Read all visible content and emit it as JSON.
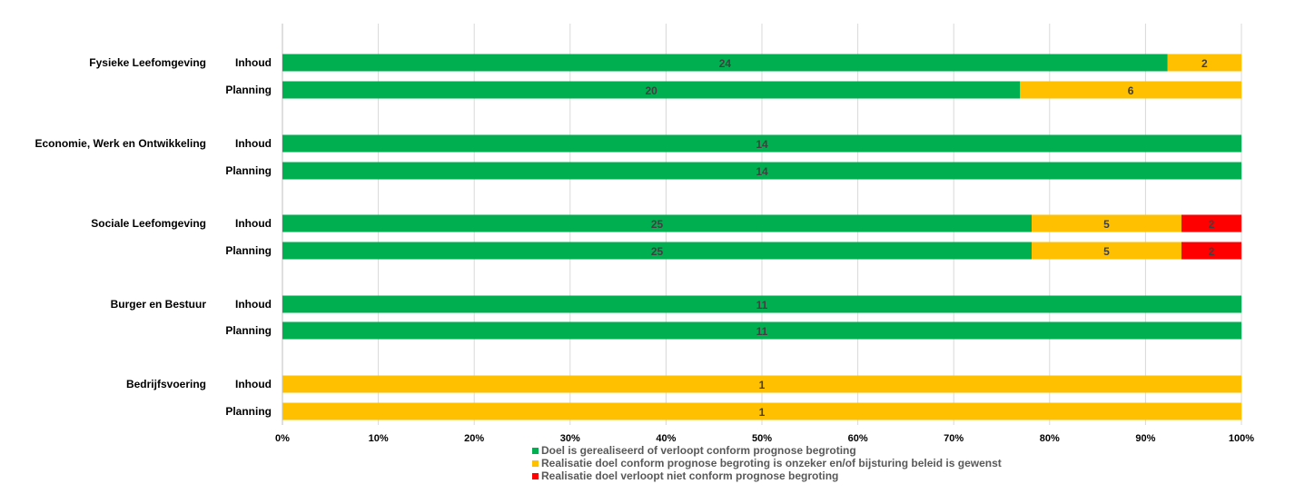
{
  "chart_data": {
    "type": "bar",
    "orientation": "horizontal",
    "stacked": "percent",
    "grid": true,
    "legend_position": "bottom",
    "xlim": [
      0,
      100
    ],
    "x_ticks": [
      "0%",
      "10%",
      "20%",
      "30%",
      "40%",
      "50%",
      "60%",
      "70%",
      "80%",
      "90%",
      "100%"
    ],
    "groups": [
      {
        "label": "Fysieke Leefomgeving",
        "rows": [
          {
            "label": "Inhoud",
            "values": [
              24,
              2,
              0
            ]
          },
          {
            "label": "Planning",
            "values": [
              20,
              6,
              0
            ]
          }
        ]
      },
      {
        "label": "Economie, Werk en Ontwikkeling",
        "rows": [
          {
            "label": "Inhoud",
            "values": [
              14,
              0,
              0
            ]
          },
          {
            "label": "Planning",
            "values": [
              14,
              0,
              0
            ]
          }
        ]
      },
      {
        "label": "Sociale Leefomgeving",
        "rows": [
          {
            "label": "Inhoud",
            "values": [
              25,
              5,
              2
            ]
          },
          {
            "label": "Planning",
            "values": [
              25,
              5,
              2
            ]
          }
        ]
      },
      {
        "label": "Burger en Bestuur",
        "rows": [
          {
            "label": "Inhoud",
            "values": [
              11,
              0,
              0
            ]
          },
          {
            "label": "Planning",
            "values": [
              11,
              0,
              0
            ]
          }
        ]
      },
      {
        "label": "Bedrijfsvoering",
        "rows": [
          {
            "label": "Inhoud",
            "values": [
              0,
              1,
              0
            ]
          },
          {
            "label": "Planning",
            "values": [
              0,
              1,
              0
            ]
          }
        ]
      }
    ],
    "series": [
      {
        "name": "Doel is gerealiseerd of verloopt conform prognose begroting",
        "color": "#00b050"
      },
      {
        "name": "Realisatie doel conform prognose begroting is onzeker en/of bijsturing beleid is gewenst",
        "color": "#ffc000"
      },
      {
        "name": "Realisatie doel verloopt niet conform prognose begroting",
        "color": "#ff0000"
      }
    ]
  }
}
